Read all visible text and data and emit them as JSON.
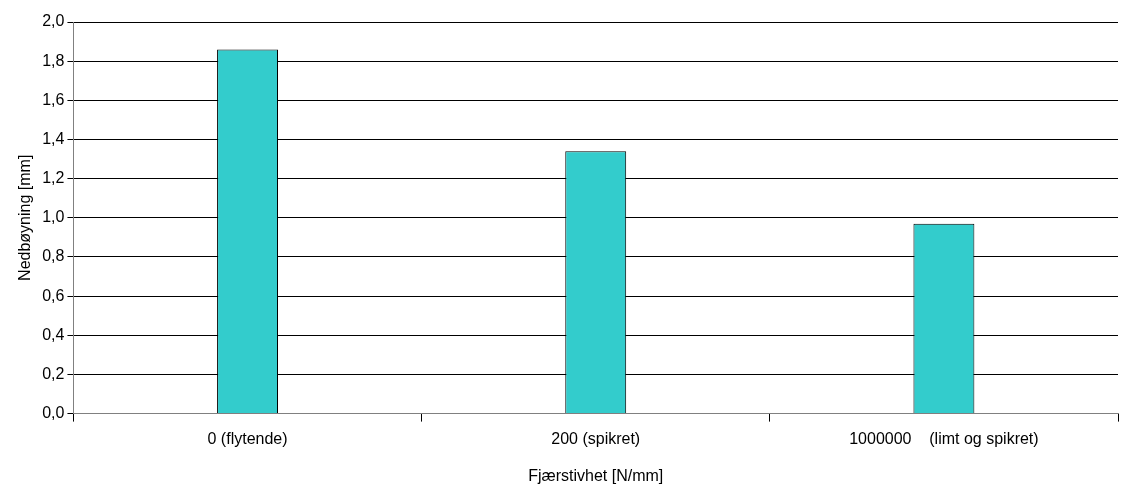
{
  "chart_data": {
    "type": "bar",
    "xlabel": "Fjærstivhet [N/mm]",
    "ylabel": "Nedbøyning [mm]",
    "categories": [
      "0 (flytende)",
      "200 (spikret)",
      "1000000    (limt og spikret)"
    ],
    "values": [
      1.86,
      1.34,
      0.97
    ],
    "color": "#33cccc",
    "ylim": [
      0,
      2
    ],
    "yticks": [
      {
        "value": 0,
        "label": "0,0"
      },
      {
        "value": 0.2,
        "label": "0,2"
      },
      {
        "value": 0.4,
        "label": "0,4"
      },
      {
        "value": 0.6,
        "label": "0,6"
      },
      {
        "value": 0.8,
        "label": "0,8"
      },
      {
        "value": 1,
        "label": "1,0"
      },
      {
        "value": 1.2,
        "label": "1,2"
      },
      {
        "value": 1.4,
        "label": "1,4"
      },
      {
        "value": 1.6,
        "label": "1,6"
      },
      {
        "value": 1.8,
        "label": "1,8"
      },
      {
        "value": 2,
        "label": "2,0"
      }
    ],
    "grid": "y",
    "legend": false
  }
}
